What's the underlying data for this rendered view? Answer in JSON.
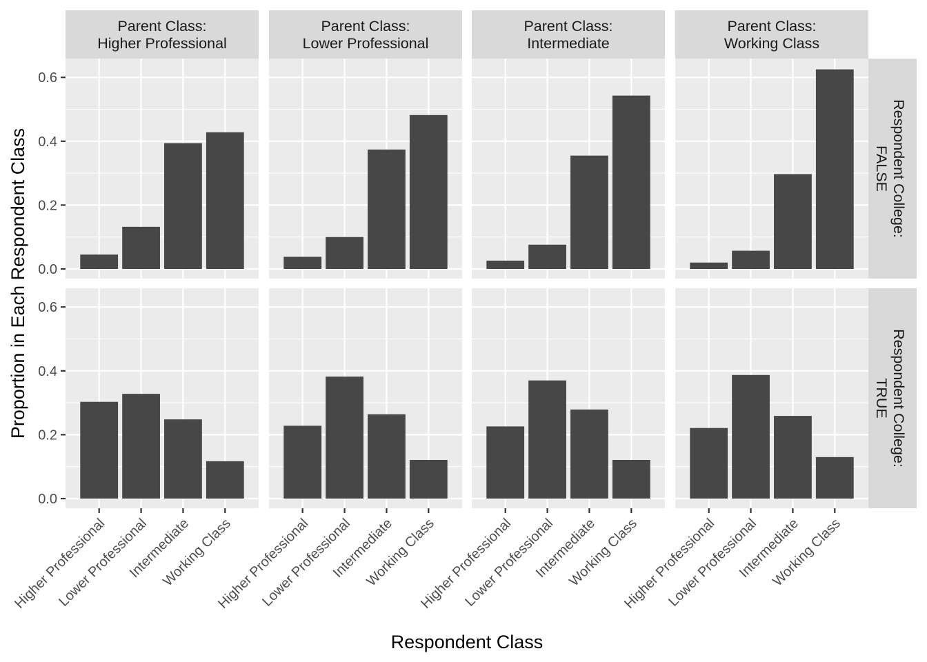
{
  "chart_data": {
    "type": "bar",
    "facet_layout": "grid",
    "xlabel": "Respondent Class",
    "ylabel": "Proportion in Each Respondent Class",
    "ylim": [
      -0.028,
      0.664
    ],
    "yticks": [
      0.0,
      0.2,
      0.4,
      0.6
    ],
    "ytick_labels": [
      "0.0",
      "0.2",
      "0.4",
      "0.6"
    ],
    "grid": true,
    "categories": [
      "Higher Professional",
      "Lower Professional",
      "Intermediate",
      "Working Class"
    ],
    "col_facets": [
      {
        "label": [
          "Parent Class:",
          "Higher Professional"
        ]
      },
      {
        "label": [
          "Parent Class:",
          "Lower Professional"
        ]
      },
      {
        "label": [
          "Parent Class:",
          "Intermediate"
        ]
      },
      {
        "label": [
          "Parent Class:",
          "Working Class"
        ]
      }
    ],
    "row_facets": [
      {
        "label": [
          "Respondent College:",
          "FALSE"
        ]
      },
      {
        "label": [
          "Respondent College:",
          "TRUE"
        ]
      }
    ],
    "values": [
      [
        [
          0.045,
          0.132,
          0.394,
          0.428
        ],
        [
          0.038,
          0.1,
          0.374,
          0.482
        ],
        [
          0.026,
          0.076,
          0.355,
          0.543
        ],
        [
          0.02,
          0.057,
          0.297,
          0.625
        ]
      ],
      [
        [
          0.303,
          0.328,
          0.248,
          0.117
        ],
        [
          0.228,
          0.382,
          0.264,
          0.121
        ],
        [
          0.226,
          0.37,
          0.279,
          0.121
        ],
        [
          0.221,
          0.387,
          0.259,
          0.13
        ]
      ]
    ]
  },
  "colors": {
    "bar": "#474747",
    "panel_background": "#ebebeb",
    "strip_background": "#d9d9d9",
    "grid": "#ffffff"
  }
}
